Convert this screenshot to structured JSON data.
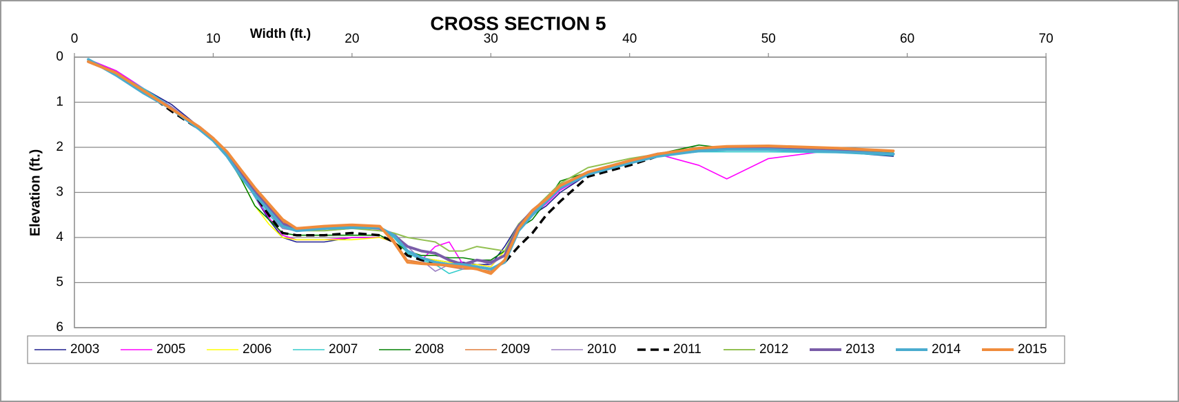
{
  "chart_data": {
    "type": "line",
    "title": "CROSS SECTION 5",
    "x_label": "Width (ft.)",
    "y_label": "Elevation (ft.)",
    "x_axis_position": "top",
    "y_inverted": true,
    "grid": true,
    "legend": "bottom",
    "xlim": [
      0,
      70
    ],
    "xticks": [
      0,
      10,
      20,
      30,
      40,
      50,
      60,
      70
    ],
    "ylim": [
      0,
      6
    ],
    "yticks": [
      0,
      1,
      2,
      3,
      4,
      5,
      6
    ],
    "x": [
      1,
      3,
      5,
      7,
      9,
      10,
      11,
      12,
      13,
      14,
      15,
      16,
      18,
      20,
      22,
      23,
      24,
      25,
      26,
      27,
      28,
      29,
      30,
      31,
      32,
      33,
      34,
      35,
      37,
      40,
      42,
      45,
      47,
      50,
      55,
      59
    ],
    "series": [
      {
        "name": "2003",
        "color": "#1f1f8f",
        "line_width": 1.6,
        "dashed": false,
        "values": [
          0.05,
          0.3,
          0.7,
          1.05,
          1.55,
          1.8,
          2.15,
          2.6,
          3.1,
          3.6,
          4.0,
          4.1,
          4.1,
          4.0,
          4.0,
          4.1,
          4.3,
          4.45,
          4.5,
          4.55,
          4.55,
          4.6,
          4.6,
          4.2,
          3.7,
          3.5,
          3.3,
          3.0,
          2.6,
          2.35,
          2.2,
          2.05,
          2.05,
          2.05,
          2.1,
          2.2
        ]
      },
      {
        "name": "2005",
        "color": "#ff00ff",
        "line_width": 1.6,
        "dashed": false,
        "values": [
          0.05,
          0.3,
          0.7,
          1.1,
          1.55,
          1.8,
          2.15,
          2.6,
          3.1,
          3.55,
          3.95,
          4.05,
          4.05,
          4.0,
          4.0,
          4.1,
          4.3,
          4.5,
          4.2,
          4.1,
          4.6,
          4.6,
          4.65,
          4.3,
          3.75,
          3.5,
          3.25,
          2.95,
          2.6,
          2.35,
          2.15,
          2.4,
          2.7,
          2.25,
          2.05,
          2.15
        ]
      },
      {
        "name": "2006",
        "color": "#ffff00",
        "line_width": 1.6,
        "dashed": false,
        "values": [
          0.1,
          0.35,
          0.75,
          1.15,
          1.6,
          1.85,
          2.2,
          2.7,
          3.3,
          3.7,
          4.0,
          4.05,
          4.05,
          4.05,
          4.0,
          4.1,
          4.3,
          4.45,
          4.5,
          4.55,
          4.6,
          4.6,
          4.65,
          4.3,
          3.8,
          3.5,
          3.2,
          2.9,
          2.6,
          2.35,
          2.2,
          2.05,
          2.05,
          2.05,
          2.1,
          2.15
        ]
      },
      {
        "name": "2007",
        "color": "#33cccc",
        "line_width": 1.6,
        "dashed": false,
        "values": [
          0.05,
          0.35,
          0.7,
          1.1,
          1.55,
          1.8,
          2.15,
          2.6,
          3.1,
          3.5,
          3.8,
          3.85,
          3.85,
          3.8,
          3.8,
          4.0,
          4.35,
          4.5,
          4.6,
          4.8,
          4.7,
          4.65,
          4.7,
          4.5,
          3.8,
          3.45,
          3.2,
          2.9,
          2.6,
          2.35,
          2.2,
          2.1,
          2.1,
          2.1,
          2.12,
          2.18
        ]
      },
      {
        "name": "2008",
        "color": "#008000",
        "line_width": 1.6,
        "dashed": false,
        "values": [
          0.05,
          0.35,
          0.75,
          1.15,
          1.6,
          1.85,
          2.2,
          2.7,
          3.3,
          3.6,
          3.9,
          3.95,
          3.95,
          3.95,
          3.95,
          4.1,
          4.3,
          4.4,
          4.4,
          4.45,
          4.45,
          4.5,
          4.5,
          4.3,
          3.8,
          3.6,
          3.2,
          2.75,
          2.55,
          2.3,
          2.15,
          1.95,
          2.02,
          2.03,
          2.05,
          2.12
        ]
      },
      {
        "name": "2009",
        "color": "#e07b39",
        "line_width": 1.6,
        "dashed": false,
        "values": [
          0.1,
          0.35,
          0.75,
          1.15,
          1.55,
          1.8,
          2.1,
          2.5,
          2.95,
          3.3,
          3.65,
          3.8,
          3.75,
          3.72,
          3.75,
          4.05,
          4.5,
          4.55,
          4.6,
          4.65,
          4.7,
          4.7,
          4.75,
          4.5,
          3.8,
          3.45,
          3.15,
          2.85,
          2.55,
          2.3,
          2.15,
          2.05,
          2.0,
          1.98,
          2.02,
          2.1
        ]
      },
      {
        "name": "2010",
        "color": "#9b7fc2",
        "line_width": 1.6,
        "dashed": false,
        "values": [
          0.05,
          0.35,
          0.75,
          1.1,
          1.55,
          1.8,
          2.15,
          2.6,
          3.05,
          3.45,
          3.8,
          3.85,
          3.85,
          3.8,
          3.8,
          3.9,
          4.2,
          4.5,
          4.75,
          4.6,
          4.7,
          4.5,
          4.6,
          4.4,
          3.75,
          3.45,
          3.2,
          2.9,
          2.6,
          2.35,
          2.2,
          2.05,
          2.05,
          2.03,
          2.08,
          2.15
        ]
      },
      {
        "name": "2011",
        "color": "#000000",
        "line_width": 3.5,
        "dashed": true,
        "values": [
          0.1,
          0.35,
          0.75,
          1.2,
          1.6,
          1.85,
          2.2,
          2.6,
          3.05,
          3.5,
          3.9,
          3.95,
          3.95,
          3.9,
          3.95,
          4.1,
          4.4,
          4.5,
          4.55,
          4.6,
          4.65,
          4.65,
          4.7,
          4.55,
          4.2,
          3.9,
          3.5,
          3.2,
          2.65,
          2.4,
          2.2,
          2.05,
          2.05,
          2.05,
          2.08,
          2.15
        ]
      },
      {
        "name": "2012",
        "color": "#92c050",
        "line_width": 2,
        "dashed": false,
        "values": [
          0.1,
          0.35,
          0.75,
          1.15,
          1.6,
          1.85,
          2.15,
          2.6,
          3.0,
          3.4,
          3.75,
          3.85,
          3.85,
          3.8,
          3.85,
          3.9,
          4.0,
          4.05,
          4.1,
          4.3,
          4.3,
          4.2,
          4.25,
          4.3,
          3.7,
          3.4,
          3.1,
          2.8,
          2.45,
          2.25,
          2.15,
          2.0,
          2.0,
          2.0,
          2.05,
          2.1
        ]
      },
      {
        "name": "2013",
        "color": "#7a5ca8",
        "line_width": 4,
        "dashed": false,
        "values": [
          0.1,
          0.35,
          0.75,
          1.15,
          1.55,
          1.8,
          2.15,
          2.55,
          3.0,
          3.35,
          3.7,
          3.8,
          3.8,
          3.75,
          3.8,
          3.95,
          4.2,
          4.3,
          4.35,
          4.5,
          4.6,
          4.5,
          4.55,
          4.4,
          3.75,
          3.4,
          3.15,
          2.85,
          2.55,
          2.3,
          2.15,
          2.05,
          2.03,
          2.03,
          2.08,
          2.15
        ]
      },
      {
        "name": "2014",
        "color": "#4aaccf",
        "line_width": 4,
        "dashed": false,
        "values": [
          0.05,
          0.4,
          0.8,
          1.15,
          1.6,
          1.85,
          2.2,
          2.65,
          3.05,
          3.4,
          3.75,
          3.85,
          3.8,
          3.78,
          3.78,
          3.95,
          4.3,
          4.45,
          4.55,
          4.6,
          4.6,
          4.65,
          4.7,
          4.55,
          3.85,
          3.5,
          3.2,
          2.9,
          2.6,
          2.35,
          2.2,
          2.08,
          2.05,
          2.05,
          2.1,
          2.15
        ]
      },
      {
        "name": "2015",
        "color": "#f08c3c",
        "line_width": 4,
        "dashed": false,
        "values": [
          0.1,
          0.35,
          0.75,
          1.15,
          1.55,
          1.8,
          2.1,
          2.5,
          2.9,
          3.25,
          3.6,
          3.8,
          3.75,
          3.72,
          3.75,
          4.1,
          4.55,
          4.58,
          4.6,
          4.62,
          4.65,
          4.7,
          4.8,
          4.5,
          3.8,
          3.4,
          3.15,
          2.85,
          2.55,
          2.3,
          2.15,
          2.02,
          1.98,
          1.97,
          2.02,
          2.08
        ]
      }
    ]
  }
}
